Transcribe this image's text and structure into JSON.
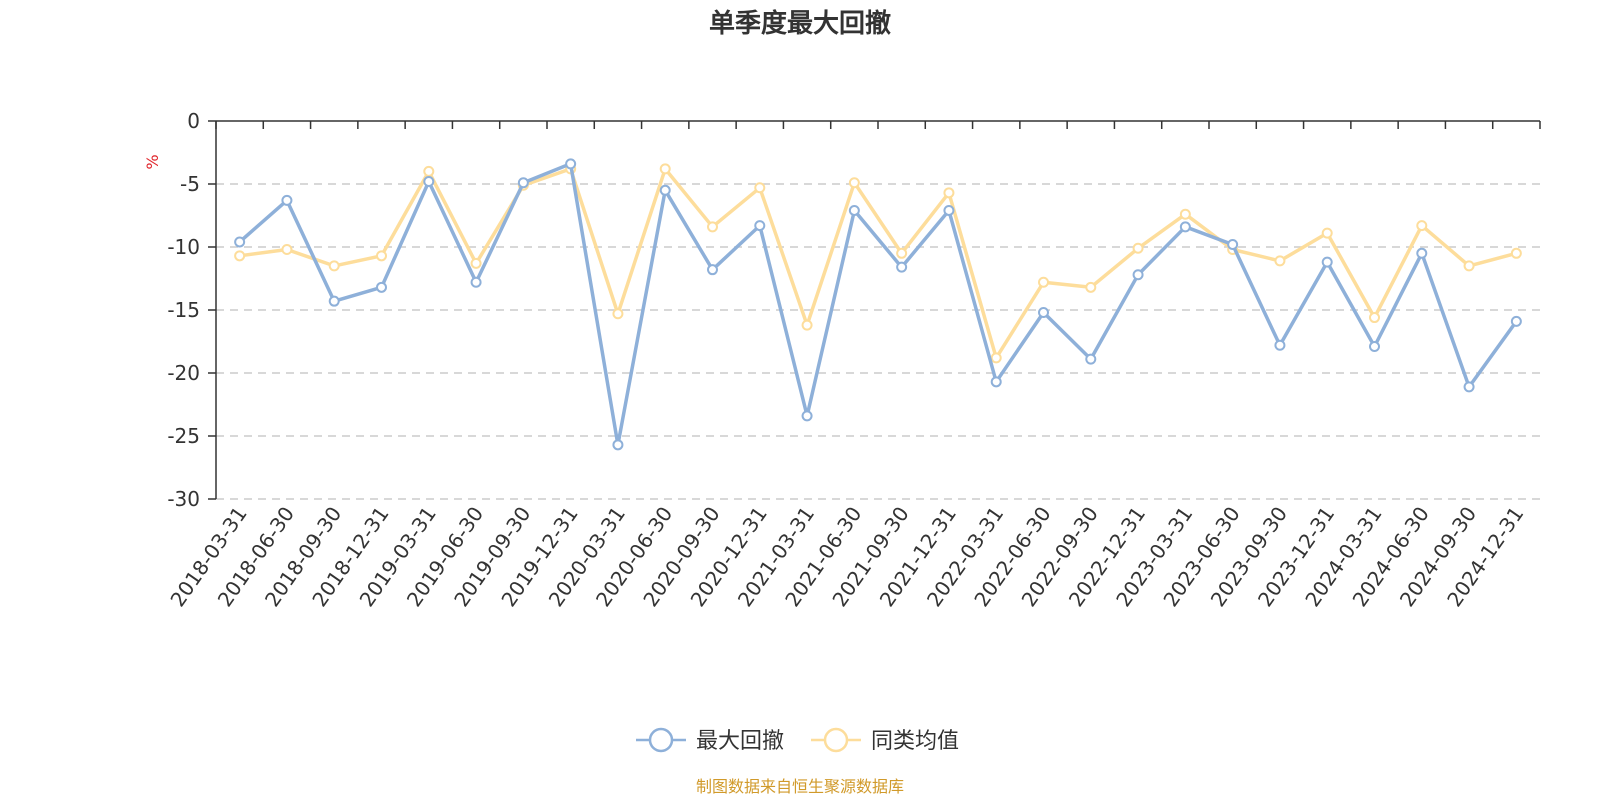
{
  "chart_data": {
    "type": "line",
    "title": "单季度最大回撤",
    "ylabel": "%",
    "ylim": [
      -30,
      0
    ],
    "yticks": [
      0,
      -5,
      -10,
      -15,
      -20,
      -25,
      -30
    ],
    "grid": true,
    "legend_position": "bottom-center",
    "categories": [
      "2018-03-31",
      "2018-06-30",
      "2018-09-30",
      "2018-12-31",
      "2019-03-31",
      "2019-06-30",
      "2019-09-30",
      "2019-12-31",
      "2020-03-31",
      "2020-06-30",
      "2020-09-30",
      "2020-12-31",
      "2021-03-31",
      "2021-06-30",
      "2021-09-30",
      "2021-12-31",
      "2022-03-31",
      "2022-06-30",
      "2022-09-30",
      "2022-12-31",
      "2023-03-31",
      "2023-06-30",
      "2023-09-30",
      "2023-12-31",
      "2024-03-31",
      "2024-06-30",
      "2024-09-30",
      "2024-12-31"
    ],
    "series": [
      {
        "name": "最大回撤",
        "color": "#8eb0d9",
        "values": [
          -9.6,
          -6.3,
          -14.3,
          -13.2,
          -4.8,
          -12.8,
          -4.9,
          -3.4,
          -25.7,
          -5.5,
          -11.8,
          -8.3,
          -23.4,
          -7.1,
          -11.6,
          -7.1,
          -20.7,
          -15.2,
          -18.9,
          -12.2,
          -8.4,
          -9.8,
          -17.8,
          -11.2,
          -17.9,
          -10.5,
          -21.1,
          -15.9
        ]
      },
      {
        "name": "同类均值",
        "color": "#fddd9b",
        "values": [
          -10.7,
          -10.2,
          -11.5,
          -10.7,
          -4.0,
          -11.3,
          -5.1,
          -3.8,
          -15.3,
          -3.8,
          -8.4,
          -5.3,
          -16.2,
          -4.9,
          -10.5,
          -5.7,
          -18.8,
          -12.8,
          -13.2,
          -10.1,
          -7.4,
          -10.2,
          -11.1,
          -8.9,
          -15.6,
          -8.3,
          -11.5,
          -10.5
        ]
      }
    ]
  },
  "source_text": "制图数据来自恒生聚源数据库",
  "colors": {
    "axis": "#333333",
    "grid": "#cccccc",
    "unit": "#e0242a",
    "source": "#d19a2a"
  }
}
